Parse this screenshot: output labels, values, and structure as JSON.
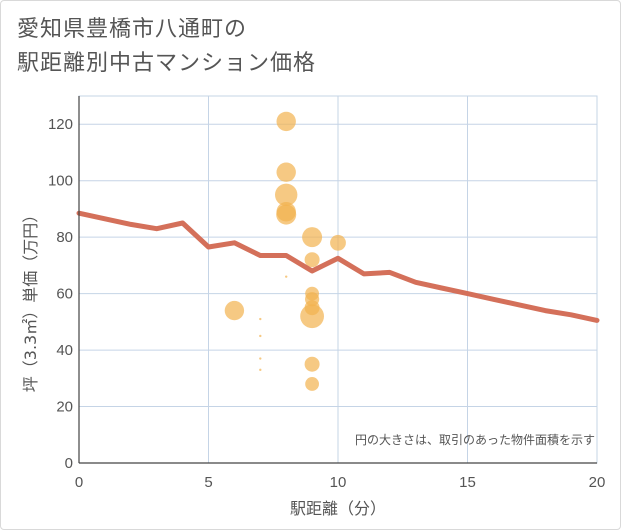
{
  "title_line1": "愛知県豊橋市八通町の",
  "title_line2": "駅距離別中古マンション価格",
  "chart_data": {
    "type": "scatter",
    "title": "愛知県豊橋市八通町の駅距離別中古マンション価格",
    "xlabel": "駅距離（分）",
    "ylabel": "坪（3.3㎡）単価（万円）",
    "xlim": [
      0,
      20
    ],
    "ylim": [
      0,
      130
    ],
    "xticks": [
      0,
      5,
      10,
      15,
      20
    ],
    "yticks": [
      0,
      20,
      40,
      60,
      80,
      100,
      120
    ],
    "grid": true,
    "note": "円の大きさは、取引のあった物件面積を示す",
    "colors": {
      "bubble": "#f2b24e",
      "line": "#d4705a",
      "grid": "#c5d4e6"
    },
    "bubbles": [
      {
        "x": 6,
        "y": 54,
        "size": 3
      },
      {
        "x": 7,
        "y": 51,
        "size": 0.2
      },
      {
        "x": 7,
        "y": 45,
        "size": 0.2
      },
      {
        "x": 7,
        "y": 37,
        "size": 0.2
      },
      {
        "x": 7,
        "y": 33,
        "size": 0.2
      },
      {
        "x": 8,
        "y": 121,
        "size": 3
      },
      {
        "x": 8,
        "y": 103,
        "size": 3
      },
      {
        "x": 8,
        "y": 95,
        "size": 4
      },
      {
        "x": 8,
        "y": 89,
        "size": 3
      },
      {
        "x": 8,
        "y": 88,
        "size": 3.2
      },
      {
        "x": 8,
        "y": 66,
        "size": 0.2
      },
      {
        "x": 9,
        "y": 80,
        "size": 3.2
      },
      {
        "x": 9,
        "y": 72,
        "size": 1.8
      },
      {
        "x": 9,
        "y": 60,
        "size": 1.5
      },
      {
        "x": 9,
        "y": 58,
        "size": 1.6
      },
      {
        "x": 9,
        "y": 55,
        "size": 1.8
      },
      {
        "x": 9,
        "y": 52,
        "size": 4.5
      },
      {
        "x": 9,
        "y": 35,
        "size": 1.8
      },
      {
        "x": 9,
        "y": 28,
        "size": 1.5
      },
      {
        "x": 10,
        "y": 78,
        "size": 2
      }
    ],
    "trend": {
      "x": [
        0,
        1,
        2,
        3,
        4,
        5,
        6,
        7,
        8,
        9,
        10,
        11,
        12,
        13,
        14,
        15,
        16,
        17,
        18,
        19,
        20
      ],
      "y": [
        88.5,
        86.5,
        84.5,
        83,
        85,
        76.5,
        78,
        73.5,
        73.5,
        68,
        72.5,
        67,
        67.5,
        64,
        62,
        60,
        58,
        56,
        54,
        52.5,
        50.5
      ]
    }
  }
}
